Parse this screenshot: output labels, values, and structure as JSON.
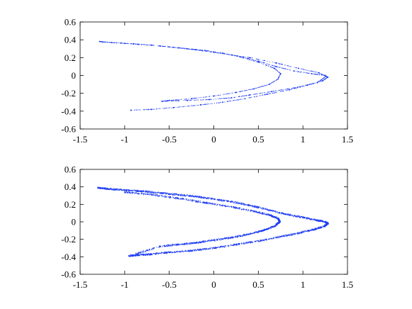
{
  "chart_data": [
    {
      "type": "scatter",
      "title": "",
      "xlabel": "",
      "ylabel": "",
      "xlim": [
        -1.5,
        1.5
      ],
      "ylim": [
        -0.6,
        0.6
      ],
      "xticks": [
        "-1.5",
        "-1",
        "-0.5",
        "0",
        "0.5",
        "1",
        "1.5"
      ],
      "yticks": [
        "-0.6",
        "-0.4",
        "-0.2",
        "0",
        "0.2",
        "0.4",
        "0.6"
      ],
      "grid": false,
      "color": "#1f3df2",
      "series": [
        {
          "name": "",
          "points": [
            [
              -1.28,
              0.38
            ],
            [
              -1.15,
              0.37
            ],
            [
              -1.0,
              0.36
            ],
            [
              -0.85,
              0.35
            ],
            [
              -0.7,
              0.34
            ],
            [
              -0.5,
              0.32
            ],
            [
              -0.3,
              0.3
            ],
            [
              -0.1,
              0.28
            ],
            [
              0.1,
              0.25
            ],
            [
              0.3,
              0.21
            ],
            [
              0.5,
              0.16
            ],
            [
              0.7,
              0.1
            ],
            [
              0.9,
              0.05
            ],
            [
              1.1,
              0.02
            ],
            [
              1.25,
              0.0
            ],
            [
              1.28,
              -0.02
            ],
            [
              1.22,
              -0.06
            ],
            [
              1.05,
              -0.11
            ],
            [
              0.85,
              -0.16
            ],
            [
              0.6,
              -0.21
            ],
            [
              0.35,
              -0.26
            ],
            [
              0.1,
              -0.3
            ],
            [
              -0.15,
              -0.33
            ],
            [
              -0.45,
              -0.36
            ],
            [
              -0.7,
              -0.38
            ],
            [
              -0.93,
              -0.39
            ],
            [
              -1.25,
              0.375
            ],
            [
              -0.9,
              0.355
            ],
            [
              -0.4,
              0.31
            ],
            [
              0.0,
              0.26
            ],
            [
              0.4,
              0.2
            ],
            [
              0.7,
              0.14
            ],
            [
              0.95,
              0.08
            ],
            [
              1.18,
              0.03
            ],
            [
              1.26,
              -0.01
            ],
            [
              1.16,
              -0.08
            ],
            [
              0.9,
              -0.14
            ],
            [
              0.65,
              -0.18
            ],
            [
              0.4,
              -0.22
            ],
            [
              0.2,
              -0.25
            ],
            [
              -0.05,
              -0.27
            ],
            [
              -0.3,
              -0.28
            ],
            [
              -0.58,
              -0.29
            ],
            [
              -0.6,
              0.33
            ],
            [
              -0.2,
              0.29
            ],
            [
              0.2,
              0.23
            ],
            [
              0.5,
              0.15
            ],
            [
              0.68,
              0.08
            ],
            [
              0.75,
              0.02
            ],
            [
              0.72,
              -0.04
            ],
            [
              0.62,
              -0.1
            ],
            [
              0.45,
              -0.15
            ],
            [
              0.25,
              -0.19
            ],
            [
              0.0,
              -0.23
            ],
            [
              -0.25,
              -0.26
            ],
            [
              -0.5,
              -0.28
            ],
            [
              -0.58,
              -0.29
            ]
          ]
        }
      ]
    },
    {
      "type": "scatter",
      "title": "",
      "xlabel": "",
      "ylabel": "",
      "xlim": [
        -1.5,
        1.5
      ],
      "ylim": [
        -0.6,
        0.6
      ],
      "xticks": [
        "-1.5",
        "-1",
        "-0.5",
        "0",
        "0.5",
        "1",
        "1.5"
      ],
      "yticks": [
        "-0.6",
        "-0.4",
        "-0.2",
        "0",
        "0.2",
        "0.4",
        "0.6"
      ],
      "grid": false,
      "color": "#1f3df2",
      "series": [
        {
          "name": "",
          "points": [
            [
              -1.3,
              0.39
            ],
            [
              -1.22,
              0.38
            ],
            [
              -1.1,
              0.37
            ],
            [
              -0.95,
              0.36
            ],
            [
              -0.8,
              0.35
            ],
            [
              -0.6,
              0.33
            ],
            [
              -0.4,
              0.31
            ],
            [
              -0.2,
              0.29
            ],
            [
              0.0,
              0.26
            ],
            [
              0.2,
              0.23
            ],
            [
              0.4,
              0.19
            ],
            [
              0.6,
              0.14
            ],
            [
              0.8,
              0.09
            ],
            [
              1.0,
              0.05
            ],
            [
              1.15,
              0.02
            ],
            [
              1.25,
              0.0
            ],
            [
              1.28,
              -0.02
            ],
            [
              1.24,
              -0.05
            ],
            [
              1.12,
              -0.09
            ],
            [
              0.95,
              -0.13
            ],
            [
              0.75,
              -0.17
            ],
            [
              0.5,
              -0.22
            ],
            [
              0.25,
              -0.26
            ],
            [
              0.0,
              -0.3
            ],
            [
              -0.25,
              -0.33
            ],
            [
              -0.5,
              -0.35
            ],
            [
              -0.7,
              -0.37
            ],
            [
              -0.85,
              -0.38
            ],
            [
              -0.95,
              -0.39
            ],
            [
              -0.6,
              -0.28
            ],
            [
              -0.4,
              -0.26
            ],
            [
              -0.2,
              -0.24
            ],
            [
              0.0,
              -0.21
            ],
            [
              0.2,
              -0.18
            ],
            [
              0.4,
              -0.14
            ],
            [
              0.55,
              -0.1
            ],
            [
              0.68,
              -0.05
            ],
            [
              0.74,
              0.0
            ],
            [
              0.72,
              0.04
            ],
            [
              0.62,
              0.08
            ],
            [
              0.45,
              0.12
            ],
            [
              0.2,
              0.17
            ],
            [
              -0.1,
              0.22
            ],
            [
              -0.4,
              0.27
            ],
            [
              -0.7,
              0.31
            ],
            [
              -1.0,
              0.34
            ]
          ]
        }
      ]
    }
  ]
}
